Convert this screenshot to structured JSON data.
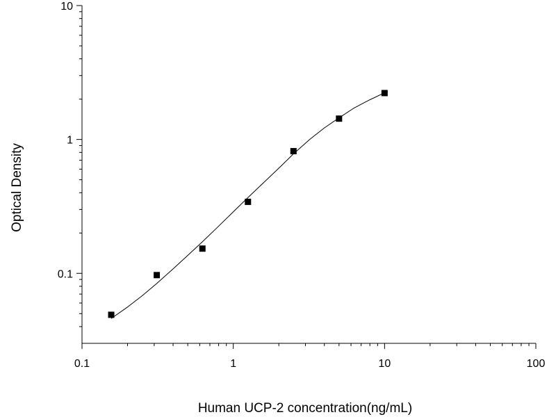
{
  "chart_data": {
    "type": "scatter",
    "title": "",
    "xlabel": "Human UCP-2 concentration(ng/mL)",
    "ylabel": "Optical Density",
    "x_scale": "log",
    "y_scale": "log",
    "xlim": [
      0.1,
      100
    ],
    "ylim": [
      0.03,
      10
    ],
    "x_ticks": [
      {
        "value": 0.1,
        "label": "0.1"
      },
      {
        "value": 1,
        "label": "1"
      },
      {
        "value": 10,
        "label": "10"
      },
      {
        "value": 100,
        "label": "100"
      }
    ],
    "y_ticks": [
      {
        "value": 0.1,
        "label": "0.1"
      },
      {
        "value": 1,
        "label": "1"
      },
      {
        "value": 10,
        "label": "10"
      }
    ],
    "grid": false,
    "legend": false,
    "points": {
      "x": [
        0.156,
        0.312,
        0.625,
        1.25,
        2.5,
        5,
        10
      ],
      "y": [
        0.049,
        0.097,
        0.153,
        0.342,
        0.818,
        1.43,
        2.22
      ]
    },
    "fit_curve": {
      "x": [
        0.156,
        0.2,
        0.25,
        0.312,
        0.4,
        0.5,
        0.625,
        0.8,
        1.0,
        1.25,
        1.6,
        2.0,
        2.5,
        3.2,
        4.0,
        5.0,
        6.3,
        8.0,
        10.0
      ],
      "y": [
        0.046,
        0.056,
        0.068,
        0.084,
        0.108,
        0.136,
        0.172,
        0.225,
        0.288,
        0.368,
        0.48,
        0.61,
        0.78,
        1.0,
        1.22,
        1.45,
        1.72,
        1.98,
        2.23
      ]
    },
    "colors": {
      "marker": "#000000",
      "curve": "#000000",
      "axis": "#000000"
    }
  }
}
